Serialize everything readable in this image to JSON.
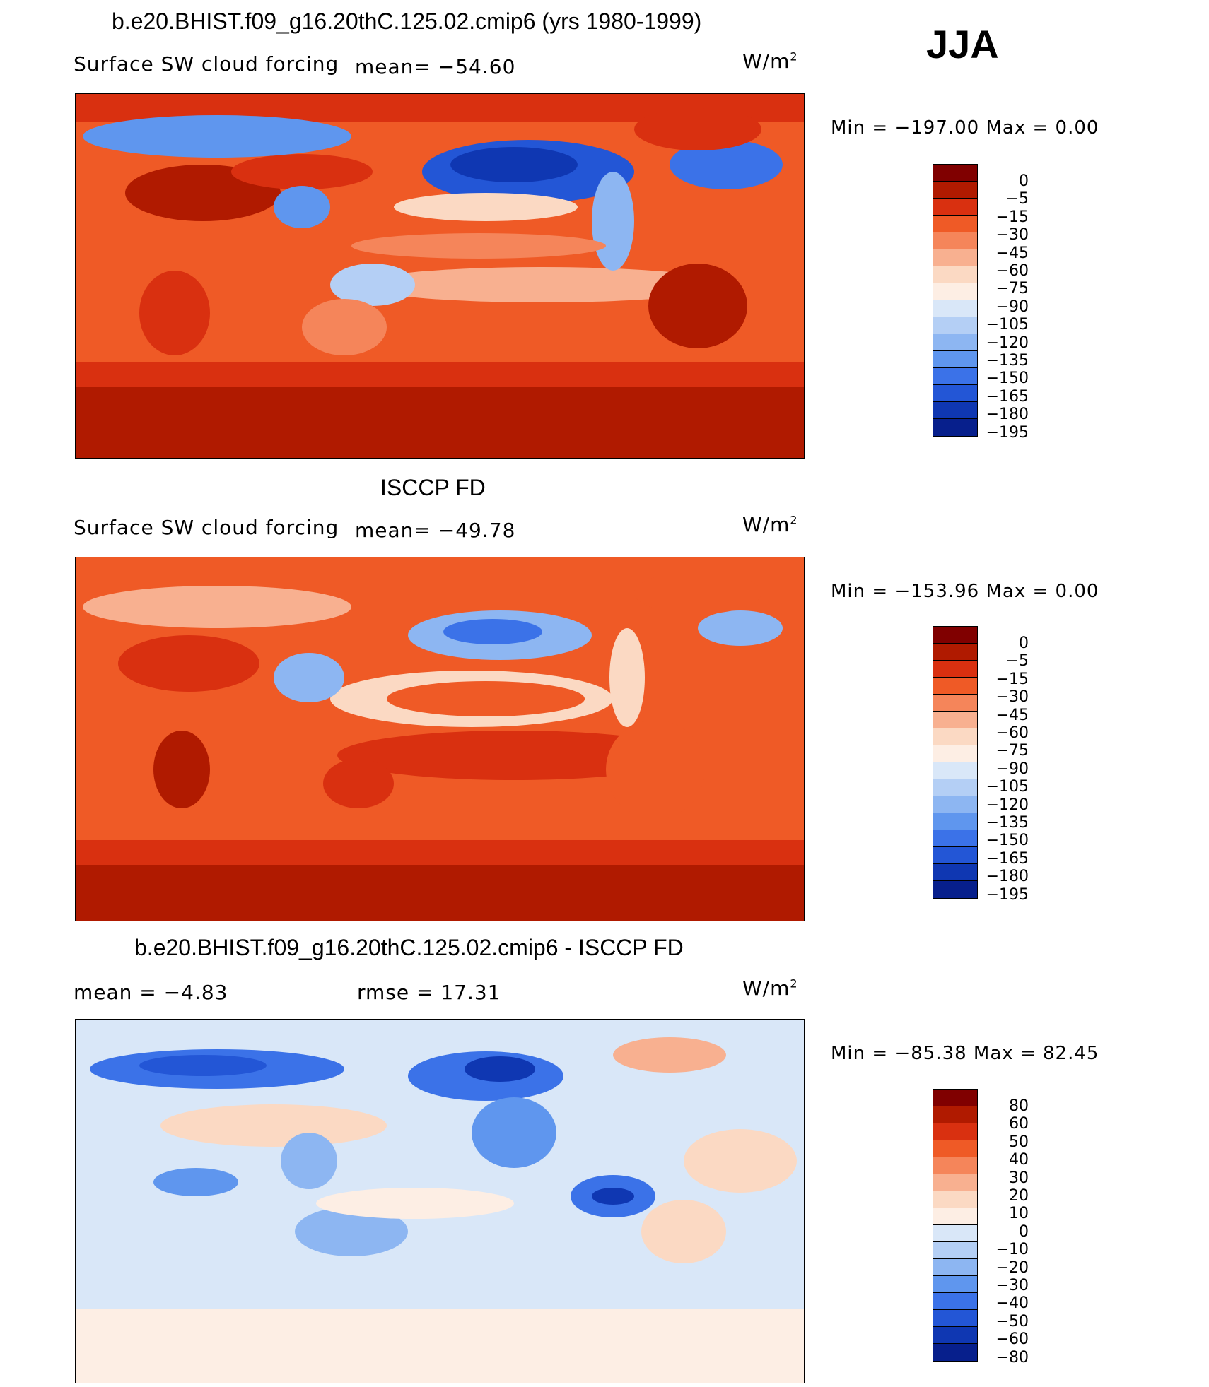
{
  "header": {
    "title": "b.e20.BHIST.f09_g16.20thC.125.02.cmip6 (yrs 1980-1999)",
    "season": "JJA"
  },
  "panels": [
    {
      "title": "b.e20.BHIST.f09_g16.20thC.125.02.cmip6 (yrs 1980-1999)",
      "variable": "Surface SW cloud forcing",
      "mean_text": "mean= −54.60",
      "units": "W/m",
      "units_sup": "2",
      "minmax": "Min  =  −197.00  Max  =      0.00",
      "colorbar_colors": [
        "#800000",
        "#b01a00",
        "#d93010",
        "#ef5a26",
        "#f5855a",
        "#f8b090",
        "#fbd9c3",
        "#fdeee4",
        "#d9e7f8",
        "#b4cff5",
        "#8db6f2",
        "#5f96ee",
        "#3b72e8",
        "#2356d6",
        "#0f37b2",
        "#071f8c"
      ],
      "colorbar_labels": [
        "0",
        "−5",
        "−15",
        "−30",
        "−45",
        "−60",
        "−75",
        "−90",
        "−105",
        "−120",
        "−135",
        "−150",
        "−165",
        "−180",
        "−195"
      ]
    },
    {
      "title": "ISCCP FD",
      "variable": "Surface SW cloud forcing",
      "mean_text": "mean= −49.78",
      "units": "W/m",
      "units_sup": "2",
      "minmax": "Min  =  −153.96  Max  =      0.00",
      "colorbar_colors": [
        "#800000",
        "#b01a00",
        "#d93010",
        "#ef5a26",
        "#f5855a",
        "#f8b090",
        "#fbd9c3",
        "#fdeee4",
        "#d9e7f8",
        "#b4cff5",
        "#8db6f2",
        "#5f96ee",
        "#3b72e8",
        "#2356d6",
        "#0f37b2",
        "#071f8c"
      ],
      "colorbar_labels": [
        "0",
        "−5",
        "−15",
        "−30",
        "−45",
        "−60",
        "−75",
        "−90",
        "−105",
        "−120",
        "−135",
        "−150",
        "−165",
        "−180",
        "−195"
      ]
    },
    {
      "title": "b.e20.BHIST.f09_g16.20thC.125.02.cmip6 - ISCCP FD",
      "mean_text": "mean  =    −4.83",
      "rmse_text": "rmse  =    17.31",
      "units": "W/m",
      "units_sup": "2",
      "minmax": "Min  =  −85.38  Max  =   82.45",
      "colorbar_colors": [
        "#800000",
        "#b01a00",
        "#d93010",
        "#ef5a26",
        "#f5855a",
        "#f8b090",
        "#fbd9c3",
        "#fdeee4",
        "#d9e7f8",
        "#b4cff5",
        "#8db6f2",
        "#5f96ee",
        "#3b72e8",
        "#2356d6",
        "#0f37b2",
        "#071f8c"
      ],
      "colorbar_labels": [
        "80",
        "60",
        "50",
        "40",
        "30",
        "20",
        "10",
        "0",
        "−10",
        "−20",
        "−30",
        "−40",
        "−50",
        "−60",
        "−80"
      ]
    }
  ]
}
